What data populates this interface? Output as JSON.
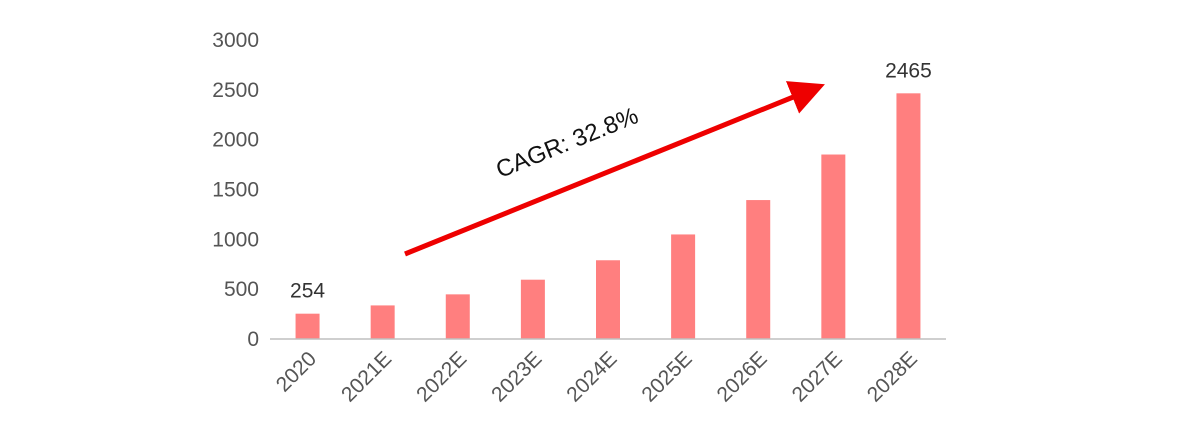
{
  "chart_data": {
    "type": "bar",
    "title": "",
    "xlabel": "",
    "ylabel": "",
    "categories": [
      "2020",
      "2021E",
      "2022E",
      "2023E",
      "2024E",
      "2025E",
      "2026E",
      "2027E",
      "2028E"
    ],
    "values": [
      254,
      337,
      448,
      595,
      790,
      1049,
      1394,
      1851,
      2465
    ],
    "ylim": [
      0,
      3000
    ],
    "yticks": [
      "0",
      "500",
      "1000",
      "1500",
      "2000",
      "2500",
      "3000"
    ],
    "data_labels": [
      {
        "category": "2020",
        "text": "254"
      },
      {
        "category": "2028E",
        "text": "2465"
      }
    ],
    "annotation": {
      "text": "CAGR: 32.8%",
      "arrow_color": "#ee0000"
    },
    "bar_color": "#ff7f7f",
    "grid": false,
    "legend": "none"
  }
}
